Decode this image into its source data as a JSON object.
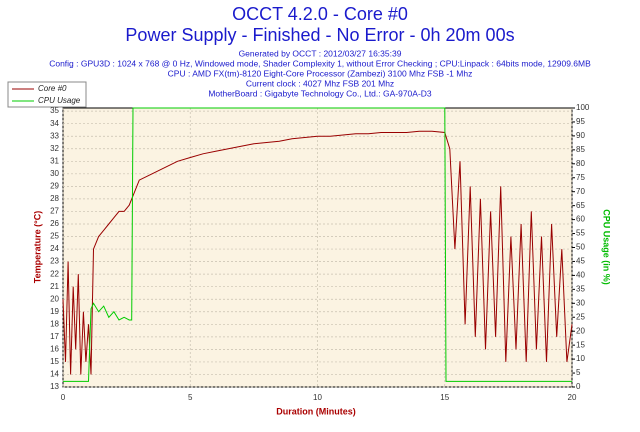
{
  "chart_data": {
    "type": "line",
    "title": "OCCT 4.2.0 - Core #0",
    "subtitle": "Power Supply - Finished - No Error - 0h 20m 00s",
    "info": [
      "Generated by OCCT : 2012/03/27 16:35:39",
      "Config : GPU3D : 1024 x 768 @ 0 Hz, Windowed mode, Shader Complexity 1, without Error Checking ; CPU:Linpack : 64bits mode, 12909.6MB",
      "CPU : AMD FX(tm)-8120 Eight-Core Processor (Zambezi) 3100 Mhz FSB -1 Mhz",
      "Current clock : 4027 Mhz FSB 201 Mhz",
      "MotherBoard : Gigabyte Technology Co., Ltd.: GA-970A-D3"
    ],
    "xlabel": "Duration (Minutes)",
    "ylabel": "Temperature (°C)",
    "y2label": "CPU Usage (in %)",
    "xlim": [
      0,
      20
    ],
    "xticks": [
      0,
      5,
      10,
      15,
      20
    ],
    "ylim": [
      13,
      35.25
    ],
    "yticks": [
      13,
      14,
      15,
      16,
      17,
      18,
      19,
      20,
      21,
      22,
      23,
      24,
      25,
      26,
      27,
      28,
      29,
      30,
      31,
      32,
      33,
      34,
      35
    ],
    "y2lim": [
      0,
      100
    ],
    "y2ticks": [
      0,
      5,
      10,
      15,
      20,
      25,
      30,
      35,
      40,
      45,
      50,
      55,
      60,
      65,
      70,
      75,
      80,
      85,
      90,
      95,
      100
    ],
    "grid": true,
    "legend": "top-left",
    "series": [
      {
        "name": "Core #0",
        "color": "#990000",
        "x": [
          0,
          0.1,
          0.2,
          0.3,
          0.4,
          0.5,
          0.6,
          0.7,
          0.8,
          0.9,
          1.0,
          1.1,
          1.2,
          1.4,
          1.6,
          1.8,
          2.0,
          2.2,
          2.4,
          2.6,
          2.8,
          3,
          3.5,
          4,
          4.5,
          5,
          5.5,
          6,
          6.5,
          7,
          7.5,
          8,
          8.5,
          9,
          9.5,
          10,
          10.5,
          11,
          11.5,
          12,
          12.5,
          13,
          13.5,
          14,
          14.5,
          15,
          15.2,
          15.4,
          15.6,
          15.8,
          16.0,
          16.2,
          16.4,
          16.6,
          16.8,
          17.0,
          17.2,
          17.4,
          17.6,
          17.8,
          18.0,
          18.2,
          18.4,
          18.6,
          18.8,
          19.0,
          19.2,
          19.4,
          19.6,
          19.8,
          20
        ],
        "values": [
          20,
          15,
          23,
          14,
          21,
          16,
          22,
          14,
          19,
          15,
          18,
          14,
          24,
          25,
          25.5,
          26,
          26.5,
          27,
          27,
          27.5,
          28.5,
          29.5,
          30,
          30.5,
          31,
          31.3,
          31.6,
          31.8,
          32,
          32.2,
          32.4,
          32.5,
          32.6,
          32.8,
          32.9,
          33,
          33,
          33.1,
          33.2,
          33.2,
          33.3,
          33.3,
          33.3,
          33.4,
          33.4,
          33.3,
          32,
          24,
          31,
          18,
          29,
          17,
          28,
          16,
          27,
          17,
          29,
          15,
          25,
          16,
          26,
          15,
          27,
          16,
          25,
          15,
          26,
          17,
          24,
          15,
          18
        ]
      },
      {
        "name": "CPU Usage",
        "color": "#00cc00",
        "axis": "y2",
        "x": [
          0,
          1,
          1.1,
          1.2,
          1.4,
          1.6,
          1.8,
          2.0,
          2.2,
          2.4,
          2.6,
          2.7,
          2.75,
          15,
          15.05,
          20
        ],
        "values": [
          2,
          2,
          28,
          30,
          27,
          29,
          25,
          27,
          24,
          25,
          24,
          24,
          100,
          100,
          2,
          2
        ]
      }
    ]
  }
}
